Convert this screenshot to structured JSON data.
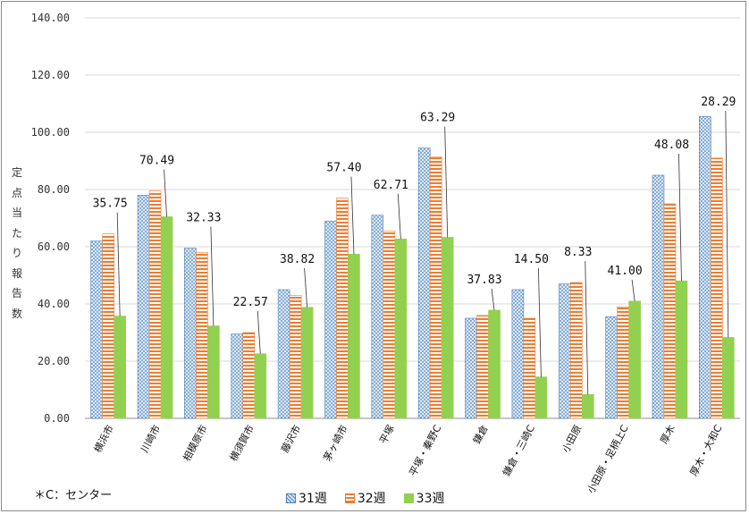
{
  "chart_data": {
    "type": "bar",
    "ylabel": "定点当たり報告数",
    "ylim": [
      0,
      140
    ],
    "yticks": [
      "0.00",
      "20.00",
      "40.00",
      "60.00",
      "80.00",
      "100.00",
      "120.00",
      "140.00"
    ],
    "grid": true,
    "legend_position": "bottom",
    "categories": [
      "横浜市",
      "川崎市",
      "相模原市",
      "横須賀市",
      "藤沢市",
      "茅ヶ崎市",
      "平塚",
      "平塚・秦野C",
      "鎌倉",
      "鎌倉・三崎C",
      "小田原",
      "小田原・足柄上C",
      "厚木",
      "厚木・大和C"
    ],
    "series": [
      {
        "name": "31週",
        "color": "#9dc3e6",
        "pattern": "dots",
        "values": [
          62.0,
          78.0,
          59.5,
          29.5,
          45.0,
          69.0,
          71.0,
          94.5,
          35.0,
          45.0,
          47.0,
          35.5,
          85.0,
          105.5
        ]
      },
      {
        "name": "32週",
        "color": "#ed7d31",
        "pattern": "stripes",
        "values": [
          64.5,
          79.5,
          58.0,
          30.0,
          43.0,
          77.0,
          65.5,
          91.5,
          36.0,
          35.0,
          47.5,
          39.0,
          75.0,
          91.0
        ]
      },
      {
        "name": "33週",
        "color": "#92d050",
        "pattern": "solid",
        "values": [
          35.75,
          70.49,
          32.33,
          22.57,
          38.82,
          57.4,
          62.71,
          63.29,
          37.83,
          14.5,
          8.33,
          41.0,
          48.08,
          28.29
        ],
        "labels": [
          "35.75",
          "70.49",
          "32.33",
          "22.57",
          "38.82",
          "57.40",
          "62.71",
          "63.29",
          "37.83",
          "14.50",
          "8.33",
          "41.00",
          "48.08",
          "28.29"
        ]
      }
    ],
    "note": "＊C：センター"
  }
}
